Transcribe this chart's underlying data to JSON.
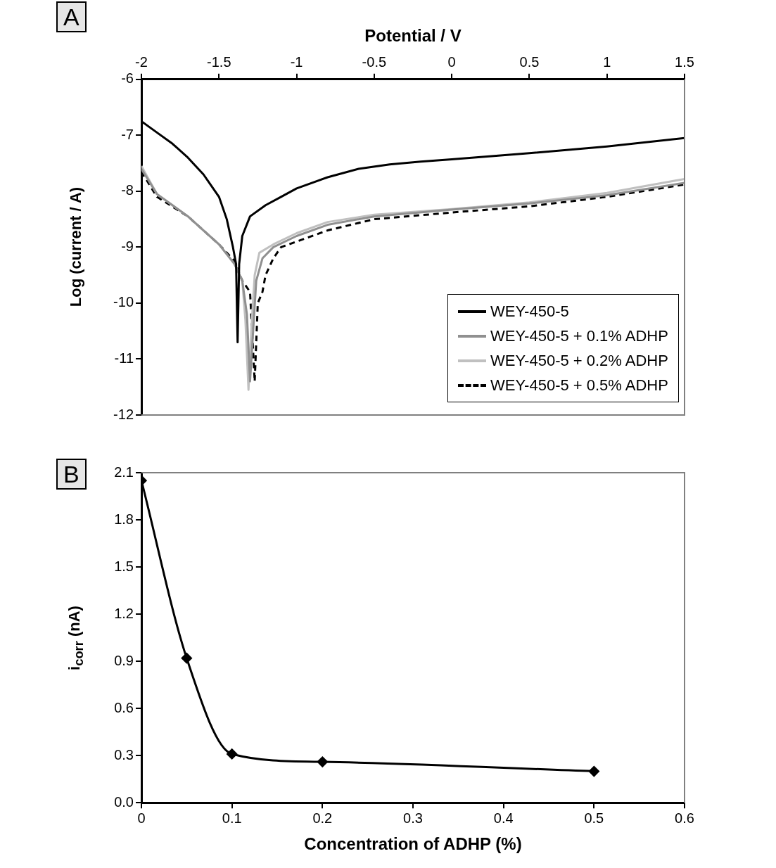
{
  "chart_data": [
    {
      "type": "line",
      "title": "A",
      "xlabel": "Potential / V",
      "ylabel": "Log (current / A)",
      "xlim": [
        -2,
        1.5
      ],
      "xticks": [
        -2,
        -1.5,
        -1,
        -0.5,
        0,
        0.5,
        1,
        1.5
      ],
      "ylim": [
        -12,
        -6
      ],
      "yticks": [
        -12,
        -11,
        -10,
        -9,
        -8,
        -7,
        -6
      ],
      "grid": false,
      "legend": "bottom right",
      "marker": "none",
      "x": [
        -2,
        -1.9,
        -1.8,
        -1.7,
        -1.6,
        -1.5,
        -1.45,
        -1.41,
        -1.39,
        -1.38,
        -1.37,
        -1.35,
        -1.3,
        -1.2,
        -1.1,
        -1.0,
        -0.8,
        -0.6,
        -0.4,
        -0.2,
        0,
        0.5,
        1,
        1.5
      ],
      "series": [
        {
          "name": "WEY-450-5",
          "color": "#000000",
          "line_style": "solid",
          "values": [
            -6.75,
            -6.95,
            -7.15,
            -7.4,
            -7.7,
            -8.1,
            -8.5,
            -9.0,
            -9.3,
            -10.7,
            -9.3,
            -8.8,
            -8.45,
            -8.25,
            -8.1,
            -7.95,
            -7.75,
            -7.6,
            -7.52,
            -7.47,
            -7.43,
            -7.32,
            -7.2,
            -7.05
          ]
        },
        {
          "name": "WEY-450-5 + 0.1% ADHP",
          "color": "#909090",
          "line_style": "solid",
          "x": [
            -2,
            -1.9,
            -1.8,
            -1.7,
            -1.6,
            -1.5,
            -1.4,
            -1.35,
            -1.32,
            -1.3,
            -1.28,
            -1.26,
            -1.22,
            -1.15,
            -1.0,
            -0.8,
            -0.5,
            0,
            0.5,
            1,
            1.5
          ],
          "values": [
            -7.6,
            -8.05,
            -8.25,
            -8.45,
            -8.7,
            -8.95,
            -9.3,
            -9.6,
            -10.2,
            -11.4,
            -10.5,
            -9.6,
            -9.2,
            -9.0,
            -8.8,
            -8.6,
            -8.45,
            -8.33,
            -8.22,
            -8.07,
            -7.85
          ]
        },
        {
          "name": "WEY-450-5 + 0.2% ADHP",
          "color": "#c0c0c0",
          "line_style": "solid",
          "x": [
            -2,
            -1.9,
            -1.8,
            -1.7,
            -1.6,
            -1.5,
            -1.4,
            -1.35,
            -1.33,
            -1.31,
            -1.29,
            -1.27,
            -1.24,
            -1.15,
            -1.0,
            -0.8,
            -0.5,
            0,
            0.5,
            1,
            1.5
          ],
          "values": [
            -7.55,
            -8.05,
            -8.25,
            -8.45,
            -8.7,
            -8.95,
            -9.3,
            -9.6,
            -10.3,
            -11.55,
            -10.4,
            -9.5,
            -9.1,
            -8.95,
            -8.75,
            -8.55,
            -8.42,
            -8.32,
            -8.2,
            -8.03,
            -7.78
          ]
        },
        {
          "name": "WEY-450-5 + 0.5% ADHP",
          "color": "#000000",
          "line_style": "dashed",
          "x": [
            -2,
            -1.9,
            -1.7,
            -1.5,
            -1.4,
            -1.35,
            -1.3,
            -1.27,
            -1.25,
            -1.22,
            -1.2,
            -1.15,
            -1.1,
            -1.0,
            -0.8,
            -0.5,
            0,
            0.5,
            1,
            1.5
          ],
          "values": [
            -7.65,
            -8.1,
            -8.45,
            -8.95,
            -9.25,
            -9.6,
            -9.8,
            -11.4,
            -10.0,
            -9.8,
            -9.5,
            -9.2,
            -9.0,
            -8.9,
            -8.7,
            -8.5,
            -8.38,
            -8.27,
            -8.1,
            -7.88
          ]
        }
      ]
    },
    {
      "type": "line",
      "title": "B",
      "xlabel": "Concentration of ADHP (%)",
      "ylabel": "i$_{corr}$ (nA)",
      "xlim": [
        0,
        0.6
      ],
      "xticks": [
        0,
        0.1,
        0.2,
        0.3,
        0.4,
        0.5,
        0.6
      ],
      "ylim": [
        0,
        2.1
      ],
      "yticks": [
        {
          "value": 0,
          "label": "0.0"
        },
        0.3,
        0.6,
        0.9,
        1.2,
        1.5,
        1.8,
        2.1
      ],
      "grid": false,
      "marker": "diamond",
      "line_style": "solid",
      "color": "#000000",
      "x": [
        0,
        0.05,
        0.1,
        0.2,
        0.5
      ],
      "values": [
        2.05,
        0.92,
        0.31,
        0.26,
        0.2
      ]
    }
  ]
}
